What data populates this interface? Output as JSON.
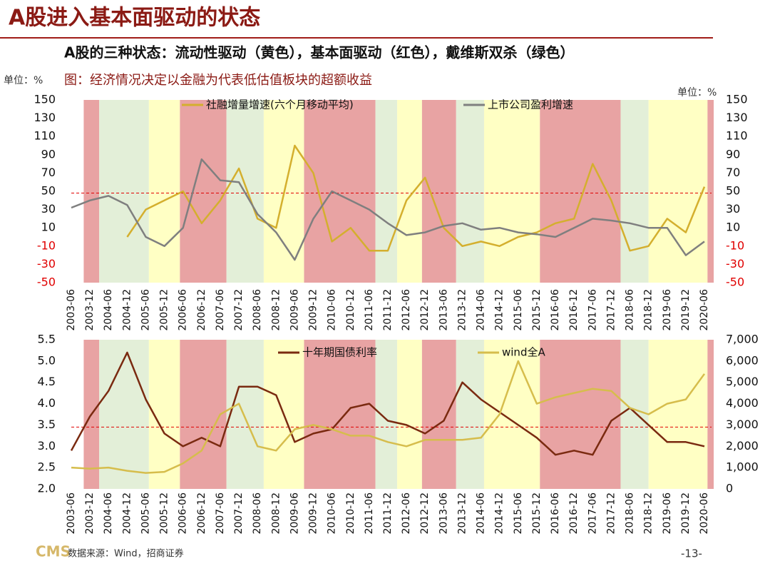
{
  "header": {
    "title": "A股进入基本面驱动的状态",
    "subtitle": "A股的三种状态：流动性驱动（黄色），基本面驱动（红色），戴维斯双杀（绿色）",
    "unit_left": "单位：%",
    "caption": "图：经济情况决定以金融为代表低估值板块的超额收益",
    "unit_right": "单位：%"
  },
  "footer": {
    "source": "数据来源：Wind，招商证券",
    "logo": "CMS",
    "page": "-13-"
  },
  "chart_data": [
    {
      "type": "line",
      "categories": [
        "2003-06",
        "2003-12",
        "2004-06",
        "2004-12",
        "2005-06",
        "2005-12",
        "2006-06",
        "2006-12",
        "2007-06",
        "2007-12",
        "2008-06",
        "2008-12",
        "2009-06",
        "2009-12",
        "2010-06",
        "2010-12",
        "2011-06",
        "2011-12",
        "2012-06",
        "2012-12",
        "2013-06",
        "2013-12",
        "2014-06",
        "2014-12",
        "2015-06",
        "2015-12",
        "2016-06",
        "2016-12",
        "2017-06",
        "2017-12",
        "2018-06",
        "2018-12",
        "2019-06",
        "2019-12",
        "2020-06"
      ],
      "regions": [
        {
          "start": "2003-10",
          "end": "2004-03",
          "color": "#e8a3a3"
        },
        {
          "start": "2004-03",
          "end": "2005-07",
          "color": "#e3efd8"
        },
        {
          "start": "2005-07",
          "end": "2006-05",
          "color": "#ffffc4"
        },
        {
          "start": "2006-05",
          "end": "2007-08",
          "color": "#e8a3a3"
        },
        {
          "start": "2007-08",
          "end": "2008-08",
          "color": "#e3efd8"
        },
        {
          "start": "2008-08",
          "end": "2009-09",
          "color": "#ffffc4"
        },
        {
          "start": "2009-09",
          "end": "2011-08",
          "color": "#e8a3a3"
        },
        {
          "start": "2011-08",
          "end": "2012-03",
          "color": "#e3efd8"
        },
        {
          "start": "2012-03",
          "end": "2012-11",
          "color": "#ffffc4"
        },
        {
          "start": "2012-11",
          "end": "2013-10",
          "color": "#e8a3a3"
        },
        {
          "start": "2013-10",
          "end": "2014-07",
          "color": "#e3efd8"
        },
        {
          "start": "2014-07",
          "end": "2016-01",
          "color": "#ffffc4"
        },
        {
          "start": "2016-01",
          "end": "2018-03",
          "color": "#e8a3a3"
        },
        {
          "start": "2018-03",
          "end": "2018-12",
          "color": "#e3efd8"
        },
        {
          "start": "2018-12",
          "end": "2020-07",
          "color": "#ffffc4"
        },
        {
          "start": "2020-07",
          "end": "2020-09",
          "color": "#e8a3a3"
        }
      ],
      "series": [
        {
          "name": "社融增量增速(六个月移动平均)",
          "color": "#d4af2e",
          "values": [
            null,
            null,
            null,
            0,
            30,
            40,
            50,
            15,
            40,
            75,
            20,
            10,
            100,
            70,
            -5,
            10,
            -15,
            -15,
            40,
            65,
            10,
            -10,
            -5,
            -10,
            0,
            5,
            15,
            20,
            80,
            40,
            -15,
            -10,
            20,
            5,
            55
          ]
        },
        {
          "name": "上市公司盈利增速",
          "color": "#7f7f7f",
          "values": [
            32,
            40,
            45,
            35,
            0,
            -10,
            10,
            85,
            62,
            60,
            25,
            5,
            -25,
            20,
            50,
            40,
            30,
            15,
            2,
            5,
            12,
            15,
            8,
            10,
            5,
            3,
            0,
            10,
            20,
            18,
            15,
            10,
            10,
            -20,
            -5
          ]
        }
      ],
      "ylim": [
        -50,
        150
      ],
      "yticks": [
        150,
        130,
        110,
        90,
        70,
        50,
        30,
        10,
        -10,
        -30,
        -50
      ],
      "y2lim": [
        -50,
        150
      ],
      "y2ticks": [
        150,
        130,
        110,
        90,
        70,
        50,
        30,
        10,
        -10,
        -30,
        -50
      ],
      "negative_tick_color": "#e00000",
      "reference_line": {
        "value": 48,
        "color": "#e00000"
      }
    },
    {
      "type": "line",
      "categories": [
        "2003-06",
        "2003-12",
        "2004-06",
        "2004-12",
        "2005-06",
        "2005-12",
        "2006-06",
        "2006-12",
        "2007-06",
        "2007-12",
        "2008-06",
        "2008-12",
        "2009-06",
        "2009-12",
        "2010-06",
        "2010-12",
        "2011-06",
        "2011-12",
        "2012-06",
        "2012-12",
        "2013-06",
        "2013-12",
        "2014-06",
        "2014-12",
        "2015-06",
        "2015-12",
        "2016-06",
        "2016-12",
        "2017-06",
        "2017-12",
        "2018-06",
        "2018-12",
        "2019-06",
        "2019-12",
        "2020-06"
      ],
      "regions": [
        {
          "start": "2003-10",
          "end": "2004-03",
          "color": "#e8a3a3"
        },
        {
          "start": "2004-03",
          "end": "2005-07",
          "color": "#e3efd8"
        },
        {
          "start": "2005-07",
          "end": "2006-05",
          "color": "#ffffc4"
        },
        {
          "start": "2006-05",
          "end": "2007-08",
          "color": "#e8a3a3"
        },
        {
          "start": "2007-08",
          "end": "2008-08",
          "color": "#e3efd8"
        },
        {
          "start": "2008-08",
          "end": "2009-09",
          "color": "#ffffc4"
        },
        {
          "start": "2009-09",
          "end": "2011-08",
          "color": "#e8a3a3"
        },
        {
          "start": "2011-08",
          "end": "2012-03",
          "color": "#e3efd8"
        },
        {
          "start": "2012-03",
          "end": "2012-11",
          "color": "#ffffc4"
        },
        {
          "start": "2012-11",
          "end": "2013-10",
          "color": "#e8a3a3"
        },
        {
          "start": "2013-10",
          "end": "2014-07",
          "color": "#e3efd8"
        },
        {
          "start": "2014-07",
          "end": "2016-01",
          "color": "#ffffc4"
        },
        {
          "start": "2016-01",
          "end": "2018-03",
          "color": "#e8a3a3"
        },
        {
          "start": "2018-03",
          "end": "2018-12",
          "color": "#e3efd8"
        },
        {
          "start": "2018-12",
          "end": "2020-07",
          "color": "#ffffc4"
        },
        {
          "start": "2020-07",
          "end": "2020-09",
          "color": "#e8a3a3"
        }
      ],
      "series": [
        {
          "name": "十年期国债利率",
          "color": "#7a2a10",
          "values": [
            2.9,
            3.7,
            4.3,
            5.2,
            4.1,
            3.3,
            3.0,
            3.2,
            3.0,
            4.4,
            4.4,
            4.2,
            3.1,
            3.3,
            3.4,
            3.9,
            4.0,
            3.6,
            3.5,
            3.3,
            3.6,
            4.5,
            4.1,
            3.8,
            3.5,
            3.2,
            2.8,
            2.9,
            2.8,
            3.6,
            3.9,
            3.5,
            3.1,
            3.1,
            3.0
          ]
        },
        {
          "name": "wind全A",
          "color": "#d6bd4c",
          "axis": "y2",
          "values": [
            1000,
            950,
            1000,
            850,
            750,
            800,
            1200,
            1800,
            3500,
            4000,
            2000,
            1800,
            2800,
            3000,
            2800,
            2500,
            2500,
            2200,
            2000,
            2300,
            2300,
            2300,
            2400,
            3500,
            6000,
            4000,
            4300,
            4500,
            4700,
            4600,
            3800,
            3500,
            4000,
            4200,
            5400
          ]
        }
      ],
      "ylim": [
        2.0,
        5.5
      ],
      "yticks": [
        {
          "value": 5.5,
          "label": "5.5"
        },
        {
          "value": 5.0,
          "label": "5.0"
        },
        {
          "value": 4.5,
          "label": "4.5"
        },
        {
          "value": 4.0,
          "label": "4.0"
        },
        {
          "value": 3.5,
          "label": "3.5"
        },
        {
          "value": 3.0,
          "label": "3.0"
        },
        {
          "value": 2.5,
          "label": "2.5"
        },
        {
          "value": 2.0,
          "label": "2.0"
        }
      ],
      "y2lim": [
        0,
        7000
      ],
      "y2ticks": [
        {
          "value": 7000,
          "label": "7,000"
        },
        {
          "value": 6000,
          "label": "6,000"
        },
        {
          "value": 5000,
          "label": "5,000"
        },
        {
          "value": 4000,
          "label": "4,000"
        },
        {
          "value": 3000,
          "label": "3,000"
        },
        {
          "value": 2000,
          "label": "2,000"
        },
        {
          "value": 1000,
          "label": "1,000"
        },
        0
      ],
      "reference_line": {
        "value": 3.45,
        "color": "#e00000"
      }
    }
  ]
}
